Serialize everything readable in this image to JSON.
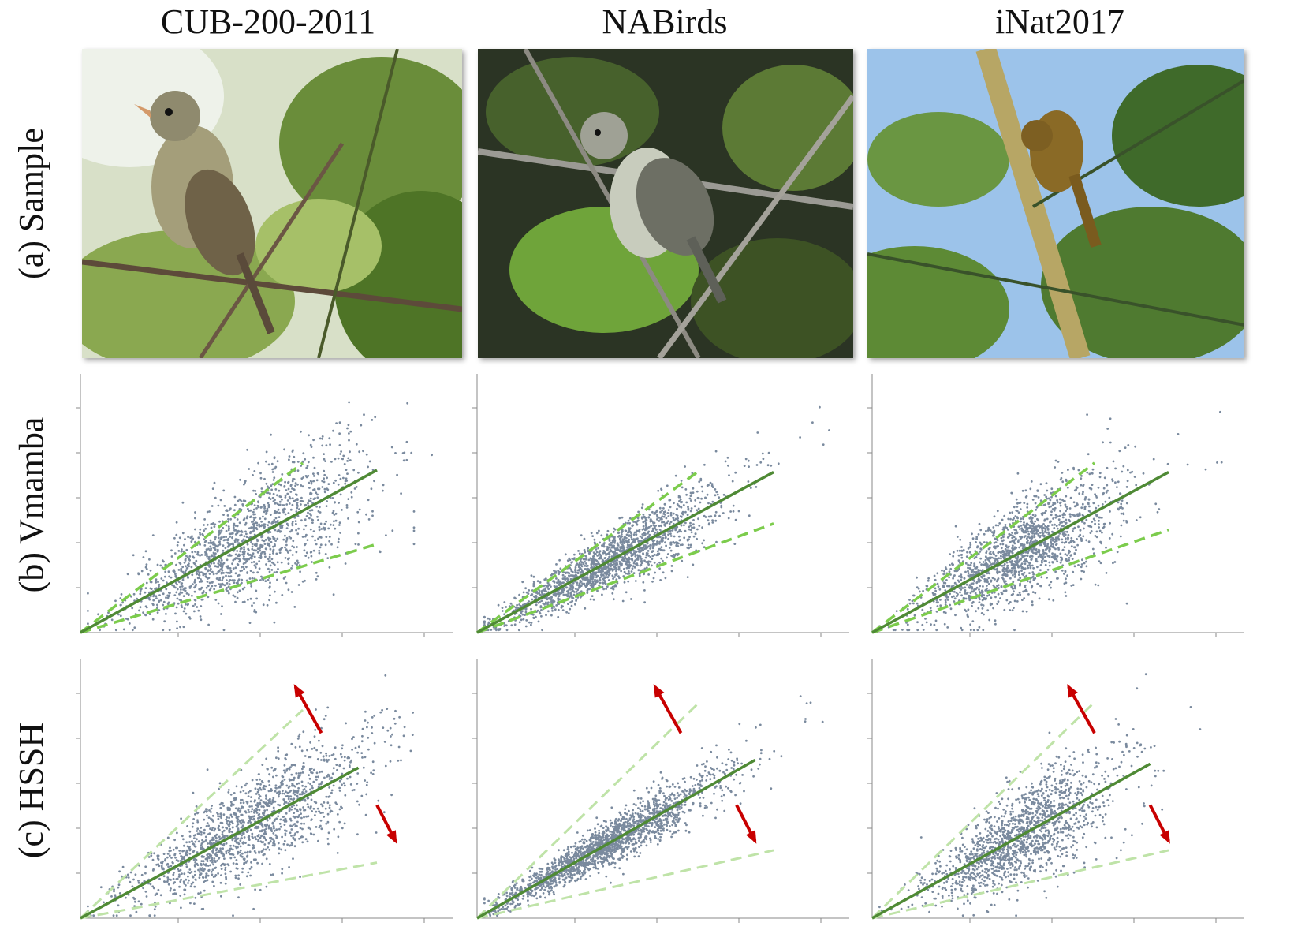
{
  "columns": [
    "CUB-200-2011",
    "NABirds",
    "iNat2017"
  ],
  "rows": [
    "(a) Sample",
    "(b) Vmamba",
    "(c) HSSH"
  ],
  "colors": {
    "points": "#7a8a9e",
    "fit_line": "#4f8a35",
    "bound_vmamba": "#7ccc4c",
    "bound_hssh": "#bfe3a8",
    "arrow": "#c80000",
    "axis": "#888888"
  },
  "chart_data": [
    {
      "type": "scatter",
      "dataset": "CUB-200-2011",
      "method": "Vmamba",
      "xlim": [
        0,
        1
      ],
      "ylim": [
        0,
        1
      ],
      "fit_slope": 0.79,
      "upper_bound_slope": 1.1,
      "lower_bound_slope": 0.43,
      "cluster": {
        "n": 1500,
        "x_mean": 0.45,
        "x_sd": 0.16,
        "spread": 0.14
      },
      "arrows": false
    },
    {
      "type": "scatter",
      "dataset": "NABirds",
      "method": "Vmamba",
      "xlim": [
        0,
        1
      ],
      "ylim": [
        0,
        1
      ],
      "fit_slope": 0.78,
      "upper_bound_slope": 1.05,
      "lower_bound_slope": 0.53,
      "cluster": {
        "n": 1800,
        "x_mean": 0.35,
        "x_sd": 0.15,
        "spread": 0.08
      },
      "arrows": false
    },
    {
      "type": "scatter",
      "dataset": "iNat2017",
      "method": "Vmamba",
      "xlim": [
        0,
        1
      ],
      "ylim": [
        0,
        1
      ],
      "fit_slope": 0.78,
      "upper_bound_slope": 1.1,
      "lower_bound_slope": 0.5,
      "cluster": {
        "n": 1600,
        "x_mean": 0.4,
        "x_sd": 0.13,
        "spread": 0.13
      },
      "arrows": false
    },
    {
      "type": "scatter",
      "dataset": "CUB-200-2011",
      "method": "HSSH",
      "xlim": [
        0,
        1
      ],
      "ylim": [
        0,
        1
      ],
      "fit_slope": 0.78,
      "upper_bound_slope": 1.35,
      "lower_bound_slope": 0.27,
      "cluster": {
        "n": 1500,
        "x_mean": 0.45,
        "x_sd": 0.16,
        "spread": 0.12
      },
      "arrows": true
    },
    {
      "type": "scatter",
      "dataset": "NABirds",
      "method": "HSSH",
      "xlim": [
        0,
        1
      ],
      "ylim": [
        0,
        1
      ],
      "fit_slope": 0.82,
      "upper_bound_slope": 1.4,
      "lower_bound_slope": 0.33,
      "cluster": {
        "n": 1800,
        "x_mean": 0.35,
        "x_sd": 0.15,
        "spread": 0.06
      },
      "arrows": true
    },
    {
      "type": "scatter",
      "dataset": "iNat2017",
      "method": "HSSH",
      "xlim": [
        0,
        1
      ],
      "ylim": [
        0,
        1
      ],
      "fit_slope": 0.8,
      "upper_bound_slope": 1.4,
      "lower_bound_slope": 0.33,
      "cluster": {
        "n": 1500,
        "x_mean": 0.4,
        "x_sd": 0.12,
        "spread": 0.12
      },
      "arrows": true
    }
  ]
}
